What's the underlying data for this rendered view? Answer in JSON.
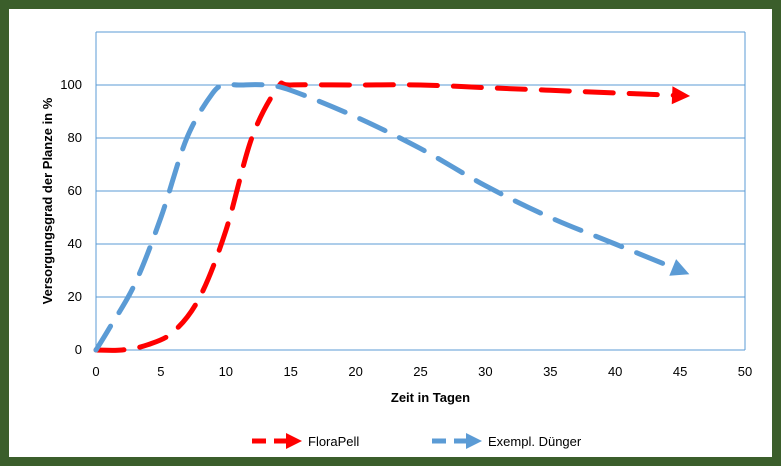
{
  "chart_data": {
    "type": "line",
    "xlabel": "Zeit in Tagen",
    "ylabel": "Versorgungsgrad der Planze in %",
    "xlim": [
      0,
      50
    ],
    "ylim": [
      0,
      120
    ],
    "xticks": [
      "0",
      "5",
      "10",
      "15",
      "20",
      "25",
      "30",
      "35",
      "40",
      "45",
      "50"
    ],
    "yticks": [
      "0",
      "20",
      "40",
      "60",
      "80",
      "100"
    ],
    "grid": "horizontal",
    "legend_position": "bottom",
    "series": [
      {
        "name": "FloraPell",
        "color": "#ff0000",
        "style": "dashed-arrow",
        "x": [
          0,
          2,
          4,
          6,
          8,
          10,
          12,
          14,
          15,
          20,
          25,
          30,
          35,
          40,
          45
        ],
        "y": [
          0,
          0,
          2,
          7,
          20,
          45,
          80,
          99,
          100,
          100,
          100,
          99,
          98,
          97,
          96
        ]
      },
      {
        "name": "Exempl. Dünger",
        "color": "#5b9bd5",
        "style": "dashed-arrow",
        "x": [
          0,
          1,
          3,
          5,
          7,
          9,
          10,
          11,
          13,
          15,
          20,
          25,
          30,
          35,
          40,
          45
        ],
        "y": [
          0,
          8,
          25,
          50,
          80,
          97,
          100,
          100,
          100,
          98,
          88,
          76,
          62,
          50,
          40,
          30
        ]
      }
    ]
  }
}
